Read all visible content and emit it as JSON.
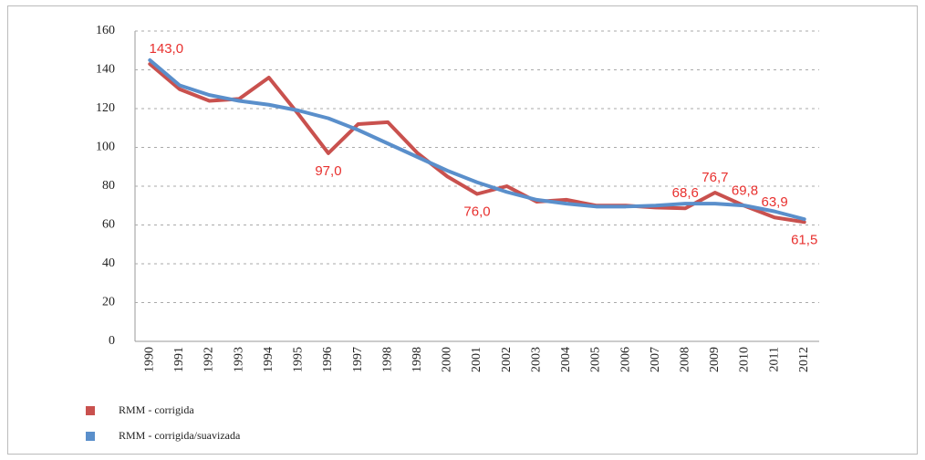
{
  "chart_data": {
    "type": "line",
    "categories": [
      "1990",
      "1991",
      "1992",
      "1993",
      "1994",
      "1995",
      "1996",
      "1997",
      "1998",
      "1998",
      "2000",
      "2001",
      "2002",
      "2003",
      "2004",
      "2005",
      "2006",
      "2007",
      "2008",
      "2009",
      "2010",
      "2011",
      "2012"
    ],
    "series": [
      {
        "name": "RMM - corrigida",
        "color": "#c9514e",
        "values": [
          143.0,
          130,
          124,
          125,
          136,
          117,
          97.0,
          112,
          113,
          97,
          85,
          76.0,
          80,
          72,
          73,
          70,
          70,
          69,
          68.6,
          76.7,
          69.8,
          63.9,
          61.5
        ],
        "value_labels": [
          "143,0",
          null,
          null,
          null,
          null,
          null,
          "97,0",
          null,
          null,
          null,
          null,
          "76,0",
          null,
          null,
          null,
          null,
          null,
          null,
          "68,6",
          "76,7",
          "69,8",
          "63,9",
          "61,5"
        ]
      },
      {
        "name": "RMM - corrigida/suavizada",
        "color": "#5a8fcb",
        "values": [
          145,
          132,
          127,
          124,
          122,
          119,
          115,
          109,
          102,
          95,
          88,
          82,
          77,
          73,
          71,
          69.5,
          69.5,
          70,
          71,
          71,
          70,
          67,
          63
        ]
      }
    ],
    "ylim": [
      0,
      160
    ],
    "yticks": [
      0,
      20,
      40,
      60,
      80,
      100,
      120,
      140,
      160
    ],
    "grid": true
  }
}
